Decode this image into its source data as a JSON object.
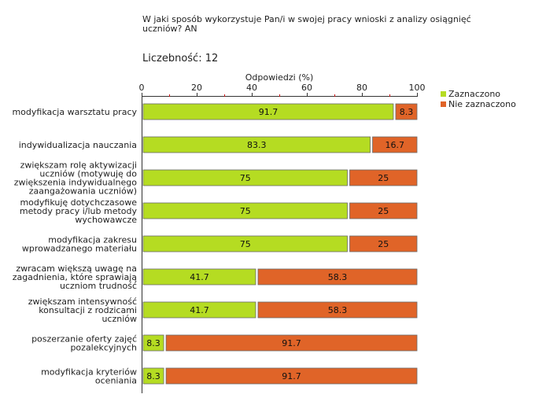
{
  "title": "W jaki sposób wykorzystuje Pan/i w swojej pracy wnioski z analizy osiągnięć uczniów? AN",
  "count_label": "Liczebność:",
  "count_value": "12",
  "colors": {
    "selected": "#b5dc22",
    "not_selected": "#e06428",
    "tick_red": "#cc0000"
  },
  "chart_data": {
    "type": "bar",
    "orientation": "horizontal",
    "stacked": true,
    "xlabel": "Odpowiedzi (%)",
    "xlim": [
      0,
      100
    ],
    "xticks": [
      0,
      20,
      40,
      60,
      80,
      100
    ],
    "legend_position": "top-right",
    "categories": [
      [
        "modyfikacja warsztatu pracy"
      ],
      [
        "indywidualizacja nauczania"
      ],
      [
        "zwiększam rolę aktywizacji",
        "uczniów (motywuję do",
        "zwiększenia indywidualnego",
        "zaangażowania uczniów)"
      ],
      [
        "modyfikuję dotychczasowe",
        "metody pracy i/lub metody",
        "wychowawcze"
      ],
      [
        "modyfikacja zakresu",
        "wprowadzanego materiału"
      ],
      [
        "zwracam większą uwagę na",
        "zagadnienia, które sprawiają",
        "uczniom trudność"
      ],
      [
        "zwiększam intensywność",
        "konsultacji z rodzicami",
        "uczniów"
      ],
      [
        "poszerzanie oferty zajęć",
        "pozalekcyjnych"
      ],
      [
        "modyfikacja kryteriów",
        "oceniania"
      ]
    ],
    "series": [
      {
        "name": "Zaznaczono",
        "values": [
          91.7,
          83.3,
          75,
          75,
          75,
          41.7,
          41.7,
          8.3,
          8.3
        ]
      },
      {
        "name": "Nie zaznaczono",
        "values": [
          8.3,
          16.7,
          25,
          25,
          25,
          58.3,
          58.3,
          91.7,
          91.7
        ]
      }
    ]
  }
}
